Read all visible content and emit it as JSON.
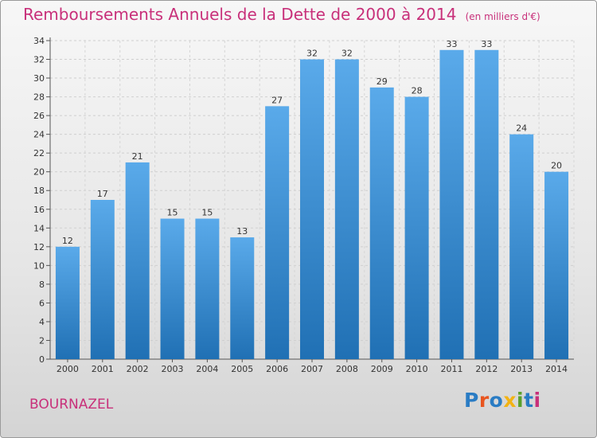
{
  "title": "Remboursements Annuels de la Dette de 2000 à 2014",
  "unit": "(en milliers d'€)",
  "commune": "BOURNAZEL",
  "logo": {
    "text": "Proxiti",
    "colors": [
      "#2a7cc4",
      "#e8551f",
      "#2a7cc4",
      "#f2b314",
      "#5aa02c",
      "#2a7cc4",
      "#c8307a"
    ]
  },
  "colors": {
    "bar_light": "#5aaaea",
    "bar_dark": "#2070b4",
    "title": "#c8307a"
  },
  "chart_data": {
    "type": "bar",
    "categories": [
      "2000",
      "2001",
      "2002",
      "2003",
      "2004",
      "2005",
      "2006",
      "2007",
      "2008",
      "2009",
      "2010",
      "2011",
      "2012",
      "2013",
      "2014"
    ],
    "values": [
      12,
      17,
      21,
      15,
      15,
      13,
      27,
      32,
      32,
      29,
      28,
      33,
      33,
      24,
      20
    ],
    "ylim": [
      0,
      34
    ],
    "yticks": [
      0,
      2,
      4,
      6,
      8,
      10,
      12,
      14,
      16,
      18,
      20,
      22,
      24,
      26,
      28,
      30,
      32,
      34
    ],
    "grid": true
  }
}
